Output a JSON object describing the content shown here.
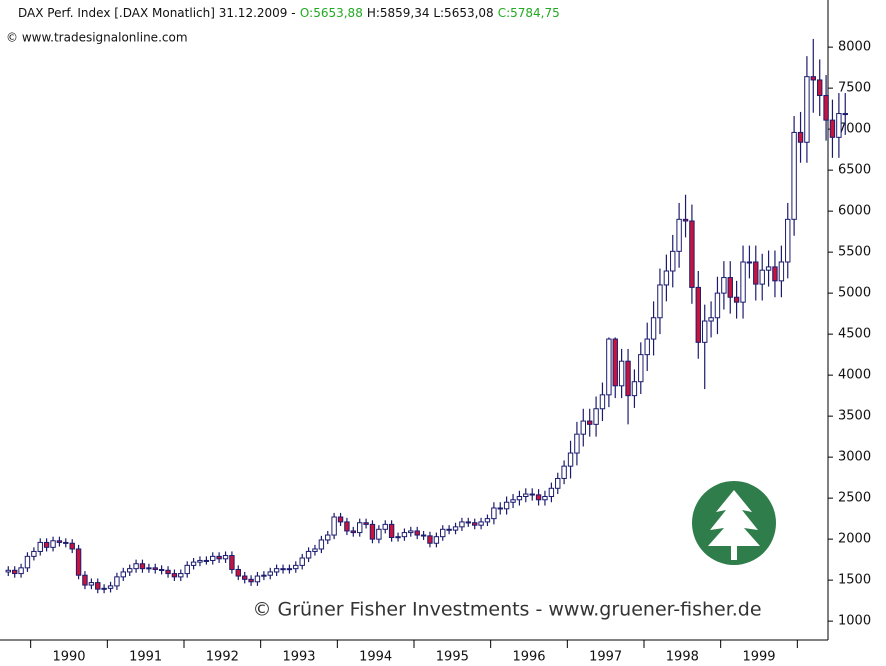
{
  "chart_data": {
    "type": "candlestick",
    "title": "DAX Perf. Index [.DAX Monatlich] 31.12.2009 -",
    "quote_open": "O:5653,88",
    "quote_high_low": "H:5859,34 L:5653,08",
    "quote_close": "C:5784,75",
    "source": "© www.tradesignalonline.com",
    "watermark": "© Grüner Fisher Investments - www.gruener-fisher.de",
    "up_color": "#ffffff",
    "down_color": "#c8143c",
    "wick_color": "#1c1c6e",
    "label_color": "#22aa22",
    "xlim": [
      1989.6,
      2000.4
    ],
    "ylim": [
      770,
      8270
    ],
    "xticks": [
      {
        "value": 1990.5,
        "label": "1990"
      },
      {
        "value": 1991.5,
        "label": "1991"
      },
      {
        "value": 1992.5,
        "label": "1992"
      },
      {
        "value": 1993.5,
        "label": "1993"
      },
      {
        "value": 1994.5,
        "label": "1994"
      },
      {
        "value": 1995.5,
        "label": "1995"
      },
      {
        "value": 1996.5,
        "label": "1996"
      },
      {
        "value": 1997.5,
        "label": "1997"
      },
      {
        "value": 1998.5,
        "label": "1998"
      },
      {
        "value": 1999.5,
        "label": "1999"
      }
    ],
    "yticks": [
      1000,
      1500,
      2000,
      2500,
      3000,
      3500,
      4000,
      4500,
      5000,
      5500,
      6000,
      6500,
      7000,
      7500,
      8000
    ],
    "x": [
      1989.708,
      1989.792,
      1989.875,
      1989.958,
      1990.042,
      1990.125,
      1990.208,
      1990.292,
      1990.375,
      1990.458,
      1990.542,
      1990.625,
      1990.708,
      1990.792,
      1990.875,
      1990.958,
      1991.042,
      1991.125,
      1991.208,
      1991.292,
      1991.375,
      1991.458,
      1991.542,
      1991.625,
      1991.708,
      1991.792,
      1991.875,
      1991.958,
      1992.042,
      1992.125,
      1992.208,
      1992.292,
      1992.375,
      1992.458,
      1992.542,
      1992.625,
      1992.708,
      1992.792,
      1992.875,
      1992.958,
      1993.042,
      1993.125,
      1993.208,
      1993.292,
      1993.375,
      1993.458,
      1993.542,
      1993.625,
      1993.708,
      1993.792,
      1993.875,
      1993.958,
      1994.042,
      1994.125,
      1994.208,
      1994.292,
      1994.375,
      1994.458,
      1994.542,
      1994.625,
      1994.708,
      1994.792,
      1994.875,
      1994.958,
      1995.042,
      1995.125,
      1995.208,
      1995.292,
      1995.375,
      1995.458,
      1995.542,
      1995.625,
      1995.708,
      1995.792,
      1995.875,
      1995.958,
      1996.042,
      1996.125,
      1996.208,
      1996.292,
      1996.375,
      1996.458,
      1996.542,
      1996.625,
      1996.708,
      1996.792,
      1996.875,
      1996.958,
      1997.042,
      1997.125,
      1997.208,
      1997.292,
      1997.375,
      1997.458,
      1997.542,
      1997.625,
      1997.708,
      1997.792,
      1997.875,
      1997.958,
      1998.042,
      1998.125,
      1998.208,
      1998.292,
      1998.375,
      1998.458,
      1998.542,
      1998.625,
      1998.708,
      1998.792,
      1998.875,
      1998.958,
      1999.042,
      1999.125,
      1999.208,
      1999.292,
      1999.375,
      1999.458,
      1999.542,
      1999.625,
      1999.708,
      1999.792,
      1999.875,
      1999.958,
      2000.042,
      2000.125,
      2000.208,
      2000.292,
      2000.375,
      2000.458,
      2000.542,
      2000.625
    ],
    "open": [
      1600,
      1620,
      1580,
      1650,
      1790,
      1850,
      1960,
      1900,
      1980,
      1960,
      1950,
      1880,
      1560,
      1440,
      1470,
      1390,
      1400,
      1430,
      1540,
      1600,
      1640,
      1700,
      1640,
      1650,
      1630,
      1620,
      1580,
      1540,
      1580,
      1680,
      1720,
      1740,
      1740,
      1790,
      1760,
      1800,
      1630,
      1550,
      1510,
      1480,
      1550,
      1560,
      1600,
      1640,
      1630,
      1640,
      1680,
      1770,
      1850,
      1880,
      1990,
      2050,
      2270,
      2210,
      2100,
      2080,
      2200,
      2180,
      2000,
      2120,
      2180,
      2020,
      2030,
      2080,
      2100,
      2050,
      2040,
      1950,
      2030,
      2120,
      2110,
      2150,
      2210,
      2200,
      2170,
      2210,
      2250,
      2380,
      2370,
      2450,
      2480,
      2520,
      2550,
      2540,
      2480,
      2520,
      2620,
      2740,
      2890,
      3050,
      3280,
      3440,
      3400,
      3590,
      3760,
      4440,
      3870,
      4170,
      3750,
      3920,
      4250,
      4440,
      4700,
      5100,
      5270,
      5510,
      5900,
      5880,
      5070,
      4400,
      4660,
      4700,
      5000,
      5190,
      4950,
      4890,
      5380,
      5380,
      5110,
      5280,
      5320,
      5150,
      5380,
      5900,
      6960,
      6840,
      7640,
      7600,
      7410,
      7110,
      6900,
      7190
    ],
    "high": [
      1670,
      1670,
      1700,
      1840,
      1900,
      2010,
      2010,
      2030,
      2030,
      2010,
      2000,
      1930,
      1610,
      1520,
      1520,
      1450,
      1480,
      1590,
      1650,
      1690,
      1750,
      1750,
      1700,
      1700,
      1680,
      1670,
      1630,
      1630,
      1730,
      1770,
      1790,
      1790,
      1840,
      1840,
      1850,
      1850,
      1680,
      1600,
      1560,
      1600,
      1610,
      1650,
      1690,
      1690,
      1690,
      1730,
      1820,
      1900,
      1930,
      2040,
      2100,
      2320,
      2320,
      2260,
      2150,
      2250,
      2250,
      2230,
      2170,
      2230,
      2230,
      2080,
      2130,
      2150,
      2150,
      2100,
      2090,
      2080,
      2170,
      2170,
      2200,
      2260,
      2260,
      2250,
      2260,
      2300,
      2450,
      2450,
      2520,
      2550,
      2590,
      2620,
      2620,
      2610,
      2590,
      2690,
      2810,
      2960,
      3200,
      3430,
      3590,
      3590,
      3740,
      3910,
      4460,
      4460,
      4320,
      4320,
      4070,
      4400,
      4640,
      4900,
      5300,
      5470,
      5710,
      6100,
      6200,
      6080,
      5270,
      4860,
      4900,
      5200,
      5390,
      5390,
      5150,
      5580,
      5580,
      5580,
      5480,
      5520,
      5520,
      5580,
      6100,
      7160,
      7210,
      7890,
      8100,
      7850,
      7660,
      7360,
      7440,
      7440
    ],
    "low": [
      1550,
      1530,
      1530,
      1600,
      1740,
      1800,
      1850,
      1850,
      1910,
      1900,
      1830,
      1510,
      1390,
      1390,
      1340,
      1340,
      1350,
      1380,
      1490,
      1550,
      1590,
      1590,
      1590,
      1580,
      1570,
      1530,
      1490,
      1490,
      1530,
      1630,
      1670,
      1690,
      1690,
      1710,
      1710,
      1580,
      1500,
      1460,
      1430,
      1430,
      1500,
      1510,
      1550,
      1580,
      1580,
      1590,
      1630,
      1720,
      1800,
      1830,
      1940,
      2000,
      2160,
      2050,
      2030,
      2030,
      2130,
      1950,
      1950,
      2070,
      1970,
      1970,
      1980,
      2030,
      2000,
      1990,
      1900,
      1900,
      1980,
      2060,
      2060,
      2100,
      2150,
      2120,
      2120,
      2160,
      2180,
      2300,
      2300,
      2380,
      2410,
      2450,
      2470,
      2410,
      2410,
      2450,
      2550,
      2670,
      2740,
      2900,
      3130,
      3250,
      3250,
      3440,
      3610,
      3720,
      3720,
      3400,
      3600,
      3770,
      4050,
      4240,
      4500,
      4900,
      5070,
      5310,
      5680,
      4870,
      4200,
      3830,
      4460,
      4500,
      4800,
      4750,
      4690,
      4690,
      5180,
      4910,
      4910,
      5080,
      4950,
      4950,
      5180,
      5700,
      6590,
      6590,
      7200,
      7160,
      6860,
      6650,
      6650,
      6930
    ],
    "close": [
      1620,
      1580,
      1650,
      1790,
      1850,
      1960,
      1900,
      1980,
      1960,
      1950,
      1880,
      1560,
      1440,
      1470,
      1390,
      1400,
      1430,
      1540,
      1600,
      1640,
      1700,
      1640,
      1650,
      1630,
      1620,
      1580,
      1540,
      1580,
      1680,
      1720,
      1740,
      1740,
      1790,
      1760,
      1800,
      1630,
      1550,
      1510,
      1480,
      1550,
      1560,
      1600,
      1640,
      1630,
      1640,
      1680,
      1770,
      1850,
      1880,
      1990,
      2050,
      2270,
      2210,
      2100,
      2080,
      2200,
      2180,
      2000,
      2120,
      2180,
      2020,
      2030,
      2080,
      2100,
      2050,
      2040,
      1950,
      2030,
      2120,
      2110,
      2150,
      2210,
      2200,
      2170,
      2210,
      2250,
      2380,
      2370,
      2450,
      2480,
      2520,
      2550,
      2540,
      2480,
      2520,
      2620,
      2740,
      2890,
      3050,
      3280,
      3440,
      3400,
      3590,
      3760,
      4440,
      3870,
      4170,
      3750,
      3920,
      4250,
      4440,
      4700,
      5100,
      5270,
      5510,
      5900,
      5880,
      5070,
      4400,
      4660,
      4700,
      5000,
      5190,
      4950,
      4890,
      5380,
      5380,
      5110,
      5280,
      5320,
      5150,
      5380,
      5900,
      6960,
      6840,
      7640,
      7600,
      7410,
      7110,
      6900,
      7190,
      7180
    ]
  }
}
